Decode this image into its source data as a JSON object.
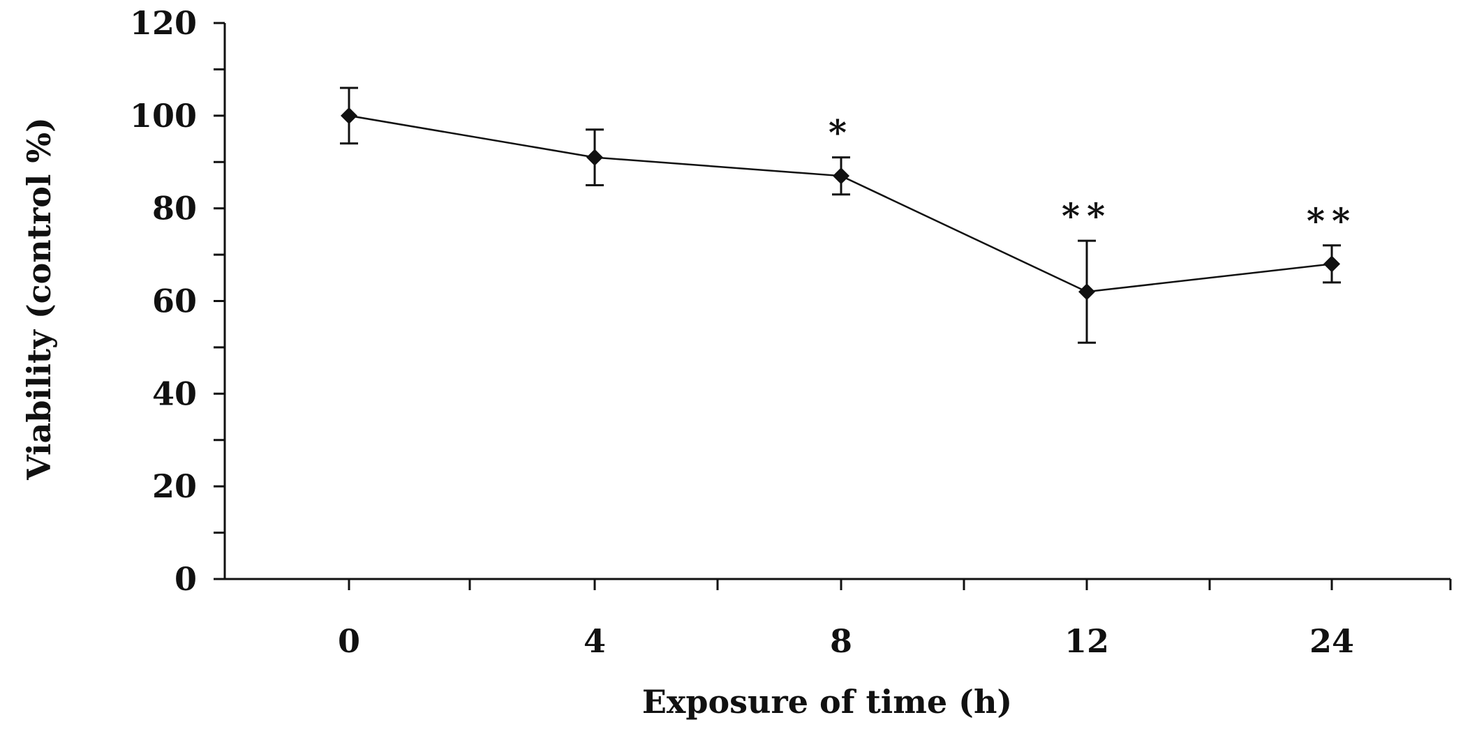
{
  "chart_data": {
    "type": "line",
    "xlabel": "Exposure of time (h)",
    "ylabel": "Viability (control %)",
    "ylim": [
      0,
      120
    ],
    "yticks": [
      0,
      20,
      40,
      60,
      80,
      100,
      120
    ],
    "categories": [
      "0",
      "4",
      "8",
      "12",
      "24"
    ],
    "grid": false,
    "series": [
      {
        "values": [
          100,
          91,
          87,
          62,
          68
        ],
        "error": [
          6,
          6,
          4,
          11,
          4
        ],
        "annotations": [
          "",
          "",
          "*",
          "**",
          "**"
        ]
      }
    ]
  }
}
